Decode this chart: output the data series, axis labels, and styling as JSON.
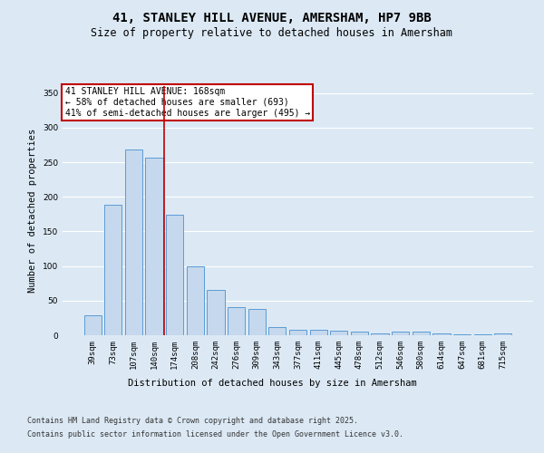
{
  "title1": "41, STANLEY HILL AVENUE, AMERSHAM, HP7 9BB",
  "title2": "Size of property relative to detached houses in Amersham",
  "xlabel": "Distribution of detached houses by size in Amersham",
  "ylabel": "Number of detached properties",
  "categories": [
    "39sqm",
    "73sqm",
    "107sqm",
    "140sqm",
    "174sqm",
    "208sqm",
    "242sqm",
    "276sqm",
    "309sqm",
    "343sqm",
    "377sqm",
    "411sqm",
    "445sqm",
    "478sqm",
    "512sqm",
    "546sqm",
    "580sqm",
    "614sqm",
    "647sqm",
    "681sqm",
    "715sqm"
  ],
  "values": [
    29,
    188,
    268,
    256,
    174,
    100,
    65,
    40,
    38,
    12,
    8,
    8,
    7,
    5,
    3,
    5,
    5,
    2,
    1,
    1,
    2
  ],
  "bar_color": "#c5d8ed",
  "bar_edge_color": "#5b9bd5",
  "vline_x": 3.5,
  "vline_color": "#c00000",
  "annotation_text": "41 STANLEY HILL AVENUE: 168sqm\n← 58% of detached houses are smaller (693)\n41% of semi-detached houses are larger (495) →",
  "annotation_box_color": "white",
  "annotation_box_edge_color": "#c00000",
  "footer1": "Contains HM Land Registry data © Crown copyright and database right 2025.",
  "footer2": "Contains public sector information licensed under the Open Government Licence v3.0.",
  "ylim": [
    0,
    360
  ],
  "yticks": [
    0,
    50,
    100,
    150,
    200,
    250,
    300,
    350
  ],
  "background_color": "#dce9f5",
  "plot_bg_color": "#dce9f5",
  "grid_color": "white",
  "title_fontsize": 10,
  "subtitle_fontsize": 8.5,
  "axis_label_fontsize": 7.5,
  "tick_fontsize": 6.5,
  "annotation_fontsize": 7,
  "footer_fontsize": 6
}
